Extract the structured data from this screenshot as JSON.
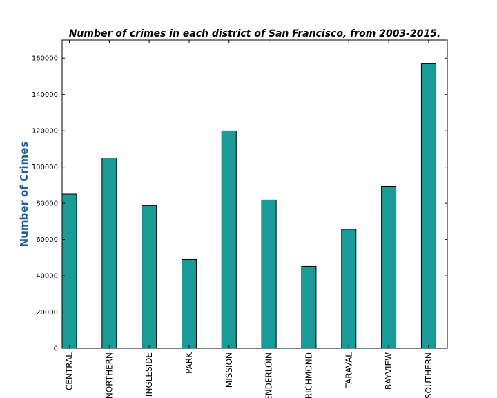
{
  "chart_data": {
    "type": "bar",
    "title": "Number of crimes in each district of San Francisco, from 2003-2015.",
    "xlabel": "",
    "ylabel": "Number of Crimes",
    "ylim": [
      0,
      170000
    ],
    "yticks": [
      0,
      20000,
      40000,
      60000,
      80000,
      100000,
      120000,
      140000,
      160000
    ],
    "categories": [
      "CENTRAL",
      "NORTHERN",
      "INGLESIDE",
      "PARK",
      "MISSION",
      "TENDERLOIN",
      "RICHMOND",
      "TARAVAL",
      "BAYVIEW",
      "SOUTHERN"
    ],
    "values": [
      85000,
      105000,
      78800,
      49000,
      119900,
      81800,
      45200,
      65600,
      89400,
      157200
    ],
    "grid": false,
    "legend": "none",
    "bar_color": "#199C98",
    "ylabel_color": "#1F5F99"
  }
}
